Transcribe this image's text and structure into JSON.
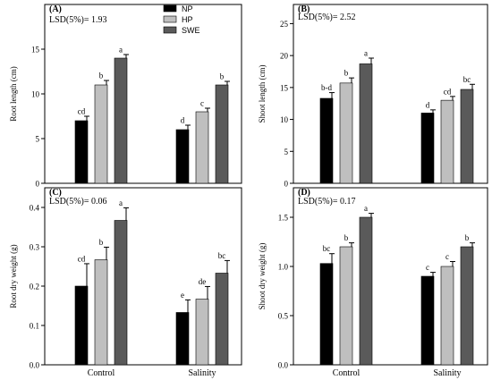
{
  "legend": [
    {
      "label": "NP",
      "color": "#000000"
    },
    {
      "label": "HP",
      "color": "#bfbfbf"
    },
    {
      "label": "SWE",
      "color": "#5a5a5a"
    }
  ],
  "chart_data": [
    {
      "type": "bar",
      "panel": "(A)",
      "lsd": "LSD(5%)= 1.93",
      "ylabel": "Root length (cm)",
      "ylim": [
        0,
        20
      ],
      "yticks": [
        "0",
        "5",
        "10",
        "15"
      ],
      "yticks_num": [
        0,
        5,
        10,
        15
      ],
      "categories": [
        "Control",
        "Salinity"
      ],
      "series": [
        {
          "name": "NP",
          "values": [
            7.0,
            6.0
          ],
          "errors": [
            0.5,
            0.5
          ],
          "letters": [
            "cd",
            "d"
          ]
        },
        {
          "name": "HP",
          "values": [
            11.0,
            8.0
          ],
          "errors": [
            0.5,
            0.4
          ],
          "letters": [
            "b",
            "c"
          ]
        },
        {
          "name": "SWE",
          "values": [
            14.0,
            11.0
          ],
          "errors": [
            0.4,
            0.4
          ],
          "letters": [
            "a",
            "b"
          ]
        }
      ],
      "show_xlabels": false
    },
    {
      "type": "bar",
      "panel": "(B)",
      "lsd": "LSD(5%)= 2.52",
      "ylabel": "Shoot length (cm)",
      "ylim": [
        0,
        28
      ],
      "yticks": [
        "0",
        "5",
        "10",
        "15",
        "20",
        "25"
      ],
      "yticks_num": [
        0,
        5,
        10,
        15,
        20,
        25
      ],
      "categories": [
        "Control",
        "Salinity"
      ],
      "series": [
        {
          "name": "NP",
          "values": [
            13.3,
            11.0
          ],
          "errors": [
            0.9,
            0.5
          ],
          "letters": [
            "b-d",
            "d"
          ]
        },
        {
          "name": "HP",
          "values": [
            15.7,
            13.0
          ],
          "errors": [
            0.8,
            0.6
          ],
          "letters": [
            "b",
            "cd"
          ]
        },
        {
          "name": "SWE",
          "values": [
            18.7,
            14.7
          ],
          "errors": [
            0.9,
            0.8
          ],
          "letters": [
            "a",
            "bc"
          ]
        }
      ],
      "show_xlabels": false
    },
    {
      "type": "bar",
      "panel": "(C)",
      "lsd": "LSD(5%)= 0.06",
      "ylabel": "Root dry weight (g)",
      "ylim": [
        0,
        0.45
      ],
      "yticks": [
        "0.0",
        "0.1",
        "0.2",
        "0.3",
        "0.4"
      ],
      "yticks_num": [
        0,
        0.1,
        0.2,
        0.3,
        0.4
      ],
      "categories": [
        "Control",
        "Salinity"
      ],
      "series": [
        {
          "name": "NP",
          "values": [
            0.2,
            0.133
          ],
          "errors": [
            0.057,
            0.032
          ],
          "letters": [
            "cd",
            "e"
          ]
        },
        {
          "name": "HP",
          "values": [
            0.267,
            0.167
          ],
          "errors": [
            0.032,
            0.032
          ],
          "letters": [
            "b",
            "de"
          ]
        },
        {
          "name": "SWE",
          "values": [
            0.367,
            0.233
          ],
          "errors": [
            0.032,
            0.032
          ],
          "letters": [
            "a",
            "bc"
          ]
        }
      ],
      "show_xlabels": true
    },
    {
      "type": "bar",
      "panel": "(D)",
      "lsd": "LSD(5%)= 0.17",
      "ylabel": "Shoot dry weight (g)",
      "ylim": [
        0,
        1.8
      ],
      "yticks": [
        "0.0",
        "0.5",
        "1.0",
        "1.5"
      ],
      "yticks_num": [
        0,
        0.5,
        1.0,
        1.5
      ],
      "categories": [
        "Control",
        "Salinity"
      ],
      "series": [
        {
          "name": "NP",
          "values": [
            1.03,
            0.9
          ],
          "errors": [
            0.1,
            0.04
          ],
          "letters": [
            "bc",
            "c"
          ]
        },
        {
          "name": "HP",
          "values": [
            1.2,
            1.0
          ],
          "errors": [
            0.04,
            0.05
          ],
          "letters": [
            "b",
            "c"
          ]
        },
        {
          "name": "SWE",
          "values": [
            1.5,
            1.2
          ],
          "errors": [
            0.04,
            0.04
          ],
          "letters": [
            "a",
            "b"
          ]
        }
      ],
      "show_xlabels": true
    }
  ]
}
